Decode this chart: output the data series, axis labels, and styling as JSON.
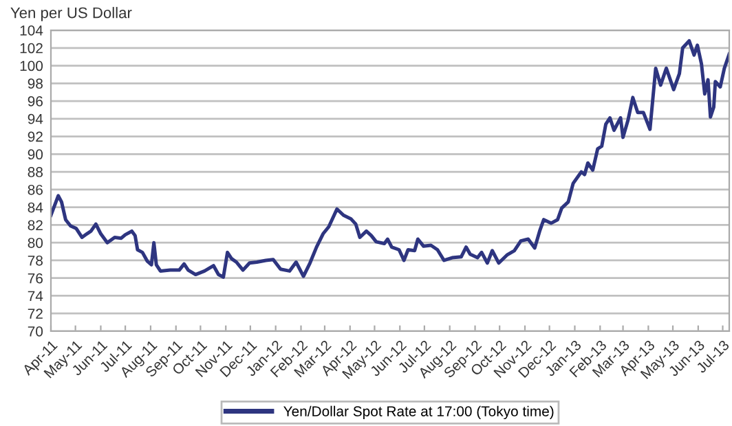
{
  "chart_data": {
    "type": "line",
    "ylabel": "Yen per US Dollar",
    "ylim": [
      70,
      104
    ],
    "yticks": [
      70,
      72,
      74,
      76,
      78,
      80,
      82,
      84,
      86,
      88,
      90,
      92,
      94,
      96,
      98,
      100,
      102,
      104
    ],
    "xlim": [
      "2011-04-01",
      "2013-07-09"
    ],
    "xticks": [
      {
        "value": "2011-04-01",
        "label": "Apr-11"
      },
      {
        "value": "2011-05-01",
        "label": "May-11"
      },
      {
        "value": "2011-06-01",
        "label": "Jun-11"
      },
      {
        "value": "2011-07-01",
        "label": "Jul-11"
      },
      {
        "value": "2011-08-01",
        "label": "Aug-11"
      },
      {
        "value": "2011-09-01",
        "label": "Sep-11"
      },
      {
        "value": "2011-10-01",
        "label": "Oct-11"
      },
      {
        "value": "2011-11-01",
        "label": "Nov-11"
      },
      {
        "value": "2011-12-01",
        "label": "Dec-11"
      },
      {
        "value": "2012-01-01",
        "label": "Jan-12"
      },
      {
        "value": "2012-02-01",
        "label": "Feb-12"
      },
      {
        "value": "2012-03-01",
        "label": "Mar-12"
      },
      {
        "value": "2012-04-01",
        "label": "Apr-12"
      },
      {
        "value": "2012-05-01",
        "label": "May-12"
      },
      {
        "value": "2012-06-01",
        "label": "Jun-12"
      },
      {
        "value": "2012-07-01",
        "label": "Jul-12"
      },
      {
        "value": "2012-08-01",
        "label": "Aug-12"
      },
      {
        "value": "2012-09-01",
        "label": "Sep-12"
      },
      {
        "value": "2012-10-01",
        "label": "Oct-12"
      },
      {
        "value": "2012-11-01",
        "label": "Nov-12"
      },
      {
        "value": "2012-12-01",
        "label": "Dec-12"
      },
      {
        "value": "2013-01-01",
        "label": "Jan-13"
      },
      {
        "value": "2013-02-01",
        "label": "Feb-13"
      },
      {
        "value": "2013-03-01",
        "label": "Mar-13"
      },
      {
        "value": "2013-04-01",
        "label": "Apr-13"
      },
      {
        "value": "2013-05-01",
        "label": "May-13"
      },
      {
        "value": "2013-06-01",
        "label": "Jun-13"
      },
      {
        "value": "2013-07-01",
        "label": "Jul-13"
      }
    ],
    "grid": "y",
    "legend": "bottom",
    "line_style": "solid",
    "marker": "none",
    "x": [
      "2011-04-01",
      "2011-04-10",
      "2011-04-14",
      "2011-04-19",
      "2011-04-25",
      "2011-05-02",
      "2011-05-09",
      "2011-05-15",
      "2011-05-20",
      "2011-05-26",
      "2011-06-01",
      "2011-06-09",
      "2011-06-18",
      "2011-06-26",
      "2011-07-01",
      "2011-07-09",
      "2011-07-13",
      "2011-07-16",
      "2011-07-22",
      "2011-07-28",
      "2011-08-02",
      "2011-08-05",
      "2011-08-08",
      "2011-08-13",
      "2011-08-25",
      "2011-09-05",
      "2011-09-11",
      "2011-09-16",
      "2011-09-25",
      "2011-10-06",
      "2011-10-17",
      "2011-10-23",
      "2011-10-29",
      "2011-11-03",
      "2011-11-08",
      "2011-11-14",
      "2011-11-22",
      "2011-11-30",
      "2011-12-09",
      "2011-12-20",
      "2011-12-29",
      "2012-01-07",
      "2012-01-18",
      "2012-01-26",
      "2012-02-04",
      "2012-02-12",
      "2012-02-20",
      "2012-02-28",
      "2012-03-06",
      "2012-03-16",
      "2012-03-24",
      "2012-04-02",
      "2012-04-08",
      "2012-04-13",
      "2012-04-21",
      "2012-04-27",
      "2012-05-03",
      "2012-05-13",
      "2012-05-17",
      "2012-05-22",
      "2012-05-31",
      "2012-06-06",
      "2012-06-11",
      "2012-06-19",
      "2012-06-23",
      "2012-06-30",
      "2012-07-09",
      "2012-07-17",
      "2012-07-25",
      "2012-08-04",
      "2012-08-15",
      "2012-08-21",
      "2012-08-26",
      "2012-09-04",
      "2012-09-09",
      "2012-09-16",
      "2012-09-22",
      "2012-09-30",
      "2012-10-10",
      "2012-10-19",
      "2012-10-27",
      "2012-11-05",
      "2012-11-13",
      "2012-11-19",
      "2012-11-24",
      "2012-12-03",
      "2012-12-11",
      "2012-12-16",
      "2012-12-24",
      "2012-12-30",
      "2013-01-09",
      "2013-01-13",
      "2013-01-17",
      "2013-01-23",
      "2013-01-29",
      "2013-02-03",
      "2013-02-08",
      "2013-02-13",
      "2013-02-18",
      "2013-02-26",
      "2013-03-01",
      "2013-03-07",
      "2013-03-13",
      "2013-03-19",
      "2013-03-26",
      "2013-04-03",
      "2013-04-10",
      "2013-04-16",
      "2013-04-23",
      "2013-05-02",
      "2013-05-09",
      "2013-05-13",
      "2013-05-21",
      "2013-05-27",
      "2013-05-31",
      "2013-06-05",
      "2013-06-09",
      "2013-06-13",
      "2013-06-16",
      "2013-06-20",
      "2013-06-22",
      "2013-06-28",
      "2013-07-03",
      "2013-07-09"
    ],
    "series": [
      {
        "name": "Yen/Dollar Spot Rate at 17:00 (Tokyo time)",
        "color": "#2e3580",
        "values": [
          83.1,
          85.3,
          84.6,
          82.6,
          81.9,
          81.6,
          80.6,
          81.0,
          81.3,
          82.1,
          81.0,
          80.0,
          80.6,
          80.5,
          80.9,
          81.3,
          80.8,
          79.2,
          78.9,
          77.9,
          77.5,
          80.0,
          77.5,
          76.8,
          76.9,
          76.9,
          77.6,
          76.9,
          76.4,
          76.8,
          77.4,
          76.4,
          76.1,
          78.9,
          78.2,
          77.8,
          76.9,
          77.7,
          77.8,
          78.0,
          78.1,
          77.0,
          76.8,
          77.8,
          76.2,
          77.7,
          79.5,
          81.0,
          81.8,
          83.8,
          83.1,
          82.7,
          82.1,
          80.6,
          81.3,
          80.8,
          80.1,
          79.9,
          80.4,
          79.5,
          79.2,
          78.0,
          79.2,
          79.1,
          80.4,
          79.6,
          79.7,
          79.2,
          78.0,
          78.3,
          78.4,
          79.5,
          78.7,
          78.3,
          78.9,
          77.7,
          79.1,
          77.7,
          78.6,
          79.1,
          80.2,
          80.4,
          79.4,
          81.3,
          82.6,
          82.2,
          82.6,
          83.9,
          84.6,
          86.7,
          88.0,
          87.7,
          89.0,
          88.2,
          90.6,
          90.9,
          93.4,
          94.1,
          92.7,
          94.1,
          91.9,
          93.8,
          96.4,
          94.7,
          94.7,
          92.8,
          99.7,
          97.8,
          99.7,
          97.3,
          99.1,
          102.0,
          102.8,
          101.2,
          102.3,
          100.2,
          96.8,
          98.4,
          94.2,
          95.3,
          98.2,
          97.6,
          99.7,
          101.3
        ]
      }
    ]
  }
}
